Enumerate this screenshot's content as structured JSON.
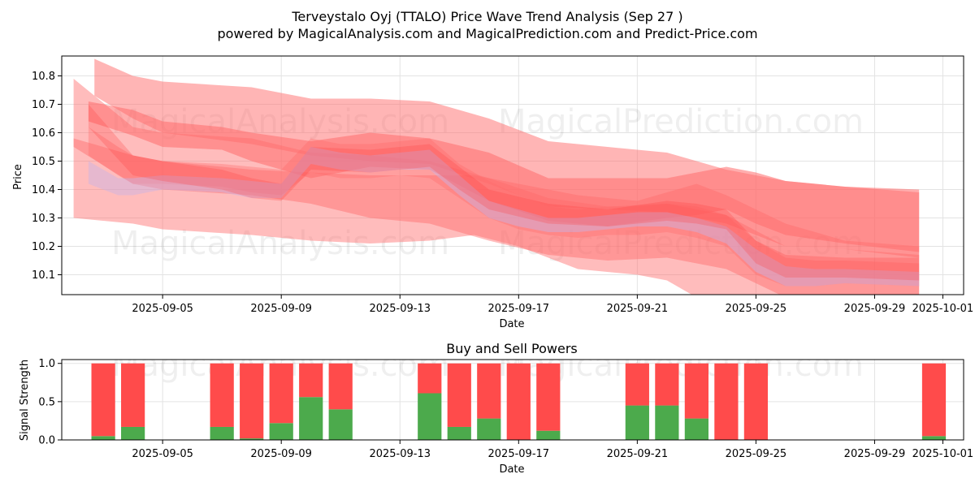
{
  "chart_data": [
    {
      "type": "area",
      "title": "Terveystalo Oyj (TTALO) Price Wave Trend Analysis (Sep 27 )",
      "subtitle": "powered by MagicalAnalysis.com and MagicalPrediction.com and Predict-Price.com",
      "xlabel": "Date",
      "ylabel": "Price",
      "xlim": [
        -0.4,
        30.0
      ],
      "ylim": [
        10.03,
        10.87
      ],
      "yticks": [
        10.1,
        10.2,
        10.3,
        10.4,
        10.5,
        10.6,
        10.7,
        10.8
      ],
      "ytick_labels": [
        "10.1",
        "10.2",
        "10.3",
        "10.4",
        "10.5",
        "10.6",
        "10.7",
        "10.8"
      ],
      "xticks": [
        3,
        7,
        11,
        15,
        19,
        23,
        27,
        29.3
      ],
      "xtick_labels": [
        "2025-09-05",
        "2025-09-09",
        "2025-09-13",
        "2025-09-17",
        "2025-09-21",
        "2025-09-25",
        "2025-09-29",
        "2025-10-01"
      ],
      "grid": true,
      "bands": [
        {
          "color": "#ff6b6b",
          "opacity": 0.45,
          "x": [
            0,
            2,
            3,
            6,
            8,
            10,
            12,
            14,
            16,
            18,
            20,
            22,
            24,
            26,
            28.5
          ],
          "upper": [
            10.79,
            10.62,
            10.6,
            10.58,
            10.53,
            10.52,
            10.5,
            10.44,
            10.37,
            10.34,
            10.35,
            10.31,
            10.2,
            10.19,
            10.17
          ],
          "lower": [
            10.55,
            10.42,
            10.4,
            10.38,
            10.35,
            10.3,
            10.28,
            10.22,
            10.17,
            10.15,
            10.16,
            10.12,
            10.02,
            10.0,
            10.0
          ]
        },
        {
          "color": "#ff6b6b",
          "opacity": 0.45,
          "x": [
            0,
            2,
            3,
            6,
            8,
            10,
            12,
            13.5,
            15,
            17,
            19,
            20,
            21,
            22,
            24,
            26,
            28.5
          ],
          "upper": [
            10.58,
            10.52,
            10.5,
            10.47,
            10.46,
            10.45,
            10.45,
            10.45,
            10.42,
            10.38,
            10.36,
            10.39,
            10.42,
            10.38,
            10.28,
            10.22,
            10.2
          ],
          "lower": [
            10.3,
            10.28,
            10.26,
            10.24,
            10.22,
            10.21,
            10.22,
            10.24,
            10.2,
            10.12,
            10.1,
            10.08,
            10.02,
            9.98,
            9.96,
            9.95,
            9.94
          ]
        },
        {
          "color": "#ff6b6b",
          "opacity": 0.5,
          "x": [
            0.7,
            2,
            3,
            6,
            8,
            10,
            12,
            14,
            16,
            18,
            20,
            22,
            24,
            26,
            28.5
          ],
          "upper": [
            10.86,
            10.8,
            10.78,
            10.76,
            10.72,
            10.72,
            10.71,
            10.65,
            10.57,
            10.55,
            10.53,
            10.47,
            10.43,
            10.41,
            10.39
          ],
          "lower": [
            10.73,
            10.65,
            10.6,
            10.56,
            10.52,
            10.5,
            10.49,
            10.42,
            10.34,
            10.33,
            10.32,
            10.28,
            10.2,
            10.19,
            10.16
          ]
        },
        {
          "color": "#ff6b6b",
          "opacity": 0.55,
          "x": [
            0.5,
            2,
            3,
            5,
            6,
            8,
            10,
            12,
            14,
            16,
            18,
            20,
            21,
            22,
            23,
            24,
            26,
            28.5
          ],
          "upper": [
            10.71,
            10.68,
            10.64,
            10.62,
            10.6,
            10.57,
            10.6,
            10.58,
            10.53,
            10.44,
            10.44,
            10.44,
            10.46,
            10.48,
            10.46,
            10.43,
            10.41,
            10.4
          ],
          "lower": [
            10.64,
            10.59,
            10.55,
            10.54,
            10.5,
            10.44,
            10.48,
            10.47,
            10.36,
            10.29,
            10.27,
            10.3,
            10.31,
            10.33,
            10.28,
            10.24,
            10.21,
            10.18
          ]
        },
        {
          "color": "#ff6b6b",
          "opacity": 0.35,
          "x": [
            0.5,
            1.5,
            2,
            3,
            5,
            6,
            7,
            8,
            9,
            10,
            11,
            12,
            13,
            14,
            15,
            16,
            17,
            18,
            19,
            20,
            21,
            22,
            23,
            24,
            25,
            26,
            28.5
          ],
          "upper": [
            10.62,
            10.55,
            10.52,
            10.5,
            10.49,
            10.48,
            10.47,
            10.58,
            10.56,
            10.56,
            10.57,
            10.58,
            10.49,
            10.43,
            10.38,
            10.34,
            10.33,
            10.34,
            10.34,
            10.35,
            10.34,
            10.31,
            10.22,
            10.16,
            10.15,
            10.15,
            10.14
          ],
          "lower": [
            10.52,
            10.45,
            10.42,
            10.42,
            10.41,
            10.39,
            10.38,
            10.46,
            10.44,
            10.44,
            10.45,
            10.44,
            10.37,
            10.3,
            10.26,
            10.24,
            10.23,
            10.24,
            10.24,
            10.25,
            10.23,
            10.2,
            10.1,
            10.06,
            10.06,
            10.07,
            10.06
          ]
        },
        {
          "color": "#c8b4e6",
          "opacity": 0.45,
          "x": [
            0.5,
            1.5,
            2,
            3,
            5,
            6,
            7,
            8,
            9,
            10,
            11,
            12,
            13,
            14,
            15,
            16,
            17,
            18,
            19,
            20,
            21,
            22,
            23,
            24,
            25,
            26,
            28.5
          ],
          "upper": [
            10.5,
            10.44,
            10.44,
            10.45,
            10.44,
            10.43,
            10.42,
            10.55,
            10.53,
            10.52,
            10.53,
            10.54,
            10.45,
            10.36,
            10.33,
            10.3,
            10.3,
            10.31,
            10.32,
            10.32,
            10.3,
            10.27,
            10.19,
            10.13,
            10.12,
            10.12,
            10.11
          ],
          "lower": [
            10.42,
            10.38,
            10.38,
            10.4,
            10.39,
            10.37,
            10.37,
            10.49,
            10.47,
            10.46,
            10.47,
            10.47,
            10.38,
            10.3,
            10.27,
            10.25,
            10.25,
            10.26,
            10.27,
            10.27,
            10.25,
            10.21,
            10.11,
            10.06,
            10.06,
            10.07,
            10.06
          ]
        },
        {
          "color": "#ff3b3b",
          "opacity": 0.25,
          "x": [
            0.5,
            2,
            3,
            5,
            6,
            7,
            8,
            10,
            12,
            13,
            14,
            16,
            18,
            20,
            21,
            22,
            23,
            24,
            26,
            28.5
          ],
          "upper": [
            10.7,
            10.52,
            10.5,
            10.47,
            10.44,
            10.42,
            10.55,
            10.54,
            10.56,
            10.48,
            10.4,
            10.35,
            10.33,
            10.36,
            10.35,
            10.33,
            10.22,
            10.17,
            10.16,
            10.16
          ],
          "lower": [
            10.62,
            10.45,
            10.43,
            10.4,
            10.37,
            10.36,
            10.47,
            10.46,
            10.48,
            10.4,
            10.33,
            10.28,
            10.27,
            10.29,
            10.28,
            10.26,
            10.14,
            10.09,
            10.09,
            10.08
          ]
        }
      ],
      "watermarks": [
        "MagicalAnalysis.com",
        "MagicalPrediction.com",
        "MagicalAnalysis.com",
        "MagicalPrediction.com"
      ]
    },
    {
      "type": "bar",
      "stacked": true,
      "title": "Buy and Sell Powers",
      "xlabel": "Date",
      "ylabel": "Signal Strength",
      "xlim": [
        -0.4,
        30.0
      ],
      "ylim": [
        0,
        1.05
      ],
      "yticks": [
        0.0,
        0.5,
        1.0
      ],
      "ytick_labels": [
        "0.0",
        "0.5",
        "1.0"
      ],
      "xticks": [
        3,
        7,
        11,
        15,
        19,
        23,
        27,
        29.3
      ],
      "xtick_labels": [
        "2025-09-05",
        "2025-09-09",
        "2025-09-13",
        "2025-09-17",
        "2025-09-21",
        "2025-09-25",
        "2025-09-29",
        "2025-10-01"
      ],
      "grid": true,
      "x": [
        1,
        2,
        5,
        6,
        7,
        8,
        9,
        12,
        13,
        14,
        15,
        16,
        19,
        20,
        21,
        22,
        23,
        29
      ],
      "series": [
        {
          "name": "Buy",
          "color": "#4caa4c",
          "values": [
            0.05,
            0.17,
            0.17,
            0.02,
            0.22,
            0.56,
            0.4,
            0.61,
            0.17,
            0.28,
            0.0,
            0.12,
            0.45,
            0.45,
            0.28,
            0.0,
            0.0,
            0.05
          ]
        },
        {
          "name": "Sell",
          "color": "#ff4b4b",
          "values": [
            0.95,
            0.83,
            0.83,
            0.98,
            0.78,
            0.44,
            0.6,
            0.39,
            0.83,
            0.72,
            1.0,
            0.88,
            0.55,
            0.55,
            0.72,
            1.0,
            1.0,
            0.95
          ]
        }
      ],
      "watermarks": [
        "MagicalAnalysis.com",
        "MagicalPrediction.com"
      ]
    }
  ]
}
